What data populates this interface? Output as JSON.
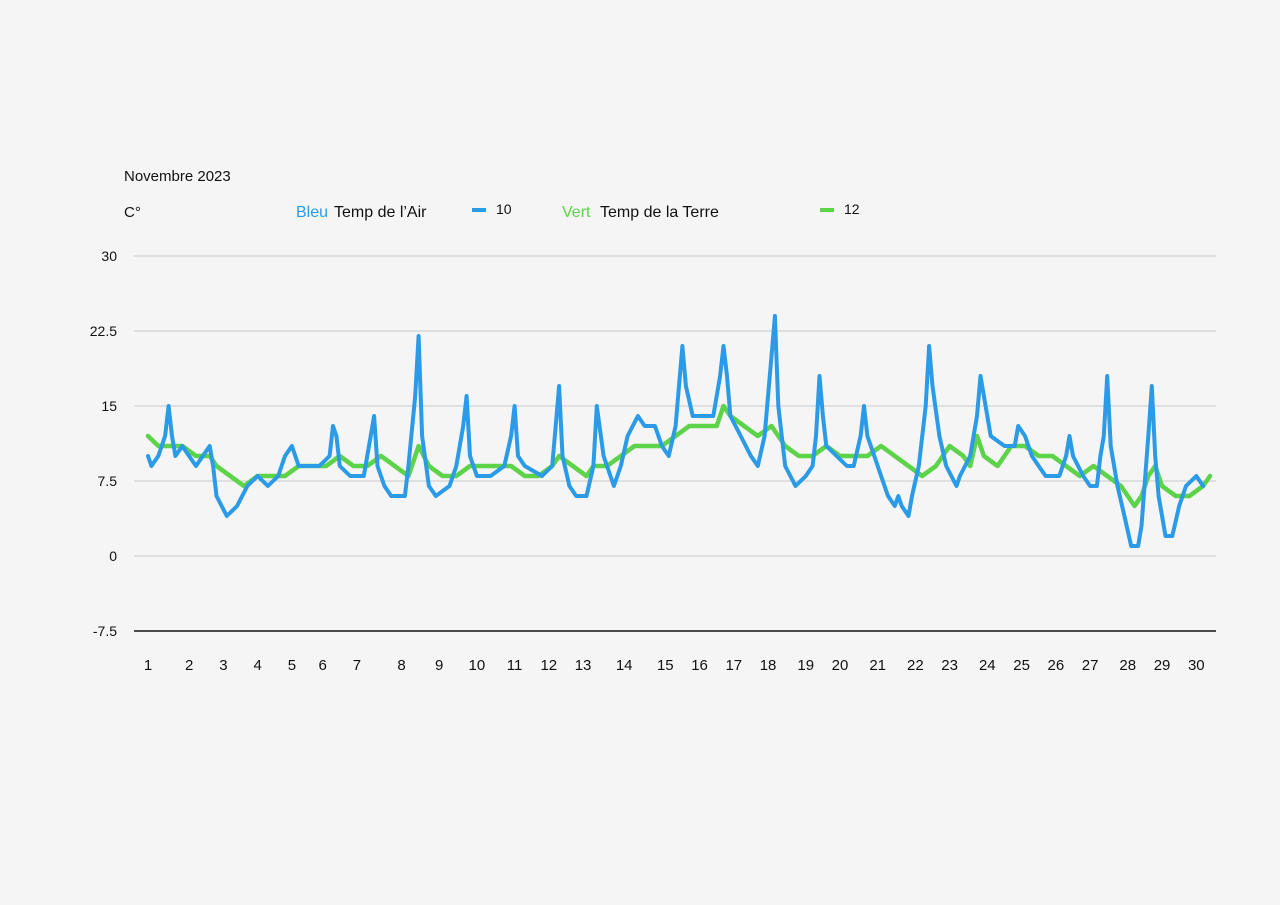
{
  "chart_data": {
    "type": "line",
    "title": "Novembre  2023",
    "ylabel": "C°",
    "ylim": [
      -7.5,
      30
    ],
    "yticks": [
      "30",
      "22.5",
      "15",
      "7.5",
      "0",
      "-7.5"
    ],
    "grid": true,
    "legend": [
      {
        "color_word": "Bleu",
        "text": "Temp de l’Air",
        "marker_label": "10",
        "color": "#2b9be8"
      },
      {
        "color_word": "Vert",
        "text": "Temp de la Terre",
        "marker_label": "12",
        "color": "#5dd34a"
      }
    ],
    "x_tick_labels": [
      "1",
      "2",
      "3",
      "4",
      "5",
      "6",
      "7",
      "8",
      "9",
      "10",
      "11",
      "12",
      "13",
      "14",
      "15",
      "16",
      "17",
      "18",
      "19",
      "20",
      "21",
      "22",
      "23",
      "24",
      "25",
      "26",
      "27",
      "28",
      "29",
      "30"
    ],
    "xlim": [
      1,
      31
    ],
    "series": [
      {
        "name": "Temp de l’Air",
        "color": "#2b9be8",
        "points": [
          [
            1.0,
            10
          ],
          [
            1.1,
            9
          ],
          [
            1.3,
            10
          ],
          [
            1.5,
            12
          ],
          [
            1.6,
            15
          ],
          [
            1.7,
            12
          ],
          [
            1.8,
            10
          ],
          [
            2.0,
            11
          ],
          [
            2.2,
            10
          ],
          [
            2.4,
            9
          ],
          [
            2.6,
            10
          ],
          [
            2.8,
            11
          ],
          [
            2.9,
            9
          ],
          [
            3.0,
            6
          ],
          [
            3.3,
            4
          ],
          [
            3.6,
            5
          ],
          [
            3.9,
            7
          ],
          [
            4.2,
            8
          ],
          [
            4.5,
            7
          ],
          [
            4.8,
            8
          ],
          [
            5.0,
            10
          ],
          [
            5.2,
            11
          ],
          [
            5.4,
            9
          ],
          [
            5.7,
            9
          ],
          [
            6.0,
            9
          ],
          [
            6.3,
            10
          ],
          [
            6.4,
            13
          ],
          [
            6.5,
            12
          ],
          [
            6.6,
            9
          ],
          [
            6.9,
            8
          ],
          [
            7.3,
            8
          ],
          [
            7.5,
            12
          ],
          [
            7.6,
            14
          ],
          [
            7.7,
            9
          ],
          [
            7.9,
            7
          ],
          [
            8.1,
            6
          ],
          [
            8.5,
            6
          ],
          [
            8.6,
            9
          ],
          [
            8.8,
            16
          ],
          [
            8.9,
            22
          ],
          [
            9.0,
            12
          ],
          [
            9.2,
            7
          ],
          [
            9.4,
            6
          ],
          [
            9.8,
            7
          ],
          [
            10.0,
            9
          ],
          [
            10.2,
            13
          ],
          [
            10.3,
            16
          ],
          [
            10.4,
            10
          ],
          [
            10.6,
            8
          ],
          [
            11.0,
            8
          ],
          [
            11.4,
            9
          ],
          [
            11.6,
            12
          ],
          [
            11.7,
            15
          ],
          [
            11.8,
            10
          ],
          [
            12.0,
            9
          ],
          [
            12.5,
            8
          ],
          [
            12.8,
            9
          ],
          [
            12.9,
            13
          ],
          [
            13.0,
            17
          ],
          [
            13.1,
            10
          ],
          [
            13.3,
            7
          ],
          [
            13.5,
            6
          ],
          [
            13.8,
            6
          ],
          [
            14.0,
            9
          ],
          [
            14.1,
            15
          ],
          [
            14.3,
            10
          ],
          [
            14.6,
            7
          ],
          [
            14.8,
            9
          ],
          [
            15.0,
            12
          ],
          [
            15.3,
            14
          ],
          [
            15.5,
            13
          ],
          [
            15.8,
            13
          ],
          [
            16.0,
            11
          ],
          [
            16.2,
            10
          ],
          [
            16.4,
            13
          ],
          [
            16.6,
            21
          ],
          [
            16.7,
            17
          ],
          [
            16.9,
            14
          ],
          [
            17.5,
            14
          ],
          [
            17.7,
            18
          ],
          [
            17.8,
            21
          ],
          [
            17.9,
            18
          ],
          [
            18.0,
            14
          ],
          [
            18.3,
            12
          ],
          [
            18.6,
            10
          ],
          [
            18.8,
            9
          ],
          [
            19.0,
            12
          ],
          [
            19.2,
            20
          ],
          [
            19.3,
            24
          ],
          [
            19.4,
            15
          ],
          [
            19.6,
            9
          ],
          [
            19.9,
            7
          ],
          [
            20.2,
            8
          ],
          [
            20.4,
            9
          ],
          [
            20.5,
            12
          ],
          [
            20.6,
            18
          ],
          [
            20.7,
            14
          ],
          [
            20.8,
            11
          ],
          [
            21.1,
            10
          ],
          [
            21.4,
            9
          ],
          [
            21.6,
            9
          ],
          [
            21.8,
            12
          ],
          [
            21.9,
            15
          ],
          [
            22.0,
            12
          ],
          [
            22.2,
            10
          ],
          [
            22.4,
            8
          ],
          [
            22.6,
            6
          ],
          [
            22.8,
            5
          ],
          [
            22.9,
            6
          ],
          [
            23.0,
            5
          ],
          [
            23.2,
            4
          ],
          [
            23.3,
            6
          ],
          [
            23.5,
            9
          ],
          [
            23.7,
            15
          ],
          [
            23.8,
            21
          ],
          [
            23.9,
            17
          ],
          [
            24.1,
            12
          ],
          [
            24.3,
            9
          ],
          [
            24.6,
            7
          ],
          [
            24.7,
            8
          ],
          [
            25.0,
            10
          ],
          [
            25.2,
            14
          ],
          [
            25.3,
            18
          ],
          [
            25.4,
            16
          ],
          [
            25.6,
            12
          ],
          [
            26.0,
            11
          ],
          [
            26.3,
            11
          ],
          [
            26.4,
            13
          ],
          [
            26.6,
            12
          ],
          [
            26.8,
            10
          ],
          [
            27.0,
            9
          ],
          [
            27.2,
            8
          ],
          [
            27.6,
            8
          ],
          [
            27.8,
            10
          ],
          [
            27.9,
            12
          ],
          [
            28.0,
            10
          ],
          [
            28.3,
            8
          ],
          [
            28.5,
            7
          ],
          [
            28.7,
            7
          ],
          [
            28.8,
            10
          ],
          [
            28.9,
            12
          ],
          [
            29.0,
            18
          ],
          [
            29.1,
            11
          ],
          [
            29.3,
            7
          ],
          [
            29.5,
            4
          ],
          [
            29.7,
            1
          ],
          [
            29.9,
            1
          ],
          [
            30.0,
            3
          ],
          [
            30.2,
            12
          ],
          [
            30.3,
            17
          ],
          [
            30.4,
            10
          ],
          [
            30.5,
            6
          ],
          [
            30.7,
            2
          ],
          [
            30.9,
            2
          ],
          [
            31.1,
            5
          ],
          [
            31.3,
            7
          ],
          [
            31.6,
            8
          ],
          [
            31.8,
            7
          ]
        ]
      },
      {
        "name": "Temp de la Terre",
        "color": "#5dd34a",
        "points": [
          [
            1.0,
            12
          ],
          [
            1.3,
            11
          ],
          [
            1.6,
            11
          ],
          [
            2.0,
            11
          ],
          [
            2.4,
            10
          ],
          [
            2.8,
            10
          ],
          [
            3.0,
            9
          ],
          [
            3.4,
            8
          ],
          [
            3.8,
            7
          ],
          [
            4.2,
            8
          ],
          [
            4.6,
            8
          ],
          [
            5.0,
            8
          ],
          [
            5.4,
            9
          ],
          [
            5.8,
            9
          ],
          [
            6.2,
            9
          ],
          [
            6.6,
            10
          ],
          [
            7.0,
            9
          ],
          [
            7.4,
            9
          ],
          [
            7.8,
            10
          ],
          [
            8.2,
            9
          ],
          [
            8.6,
            8
          ],
          [
            8.9,
            11
          ],
          [
            9.2,
            9
          ],
          [
            9.6,
            8
          ],
          [
            10.0,
            8
          ],
          [
            10.4,
            9
          ],
          [
            10.8,
            9
          ],
          [
            11.2,
            9
          ],
          [
            11.6,
            9
          ],
          [
            12.0,
            8
          ],
          [
            12.4,
            8
          ],
          [
            12.8,
            9
          ],
          [
            13.0,
            10
          ],
          [
            13.4,
            9
          ],
          [
            13.8,
            8
          ],
          [
            14.0,
            9
          ],
          [
            14.4,
            9
          ],
          [
            14.8,
            10
          ],
          [
            15.2,
            11
          ],
          [
            15.6,
            11
          ],
          [
            16.0,
            11
          ],
          [
            16.4,
            12
          ],
          [
            16.8,
            13
          ],
          [
            17.2,
            13
          ],
          [
            17.6,
            13
          ],
          [
            17.8,
            15
          ],
          [
            18.0,
            14
          ],
          [
            18.4,
            13
          ],
          [
            18.8,
            12
          ],
          [
            19.2,
            13
          ],
          [
            19.4,
            12
          ],
          [
            19.6,
            11
          ],
          [
            20.0,
            10
          ],
          [
            20.4,
            10
          ],
          [
            20.8,
            11
          ],
          [
            21.2,
            10
          ],
          [
            21.6,
            10
          ],
          [
            22.0,
            10
          ],
          [
            22.4,
            11
          ],
          [
            22.8,
            10
          ],
          [
            23.2,
            9
          ],
          [
            23.6,
            8
          ],
          [
            24.0,
            9
          ],
          [
            24.4,
            11
          ],
          [
            24.8,
            10
          ],
          [
            25.0,
            9
          ],
          [
            25.2,
            12
          ],
          [
            25.4,
            10
          ],
          [
            25.8,
            9
          ],
          [
            26.2,
            11
          ],
          [
            26.6,
            11
          ],
          [
            27.0,
            10
          ],
          [
            27.4,
            10
          ],
          [
            27.8,
            9
          ],
          [
            28.2,
            8
          ],
          [
            28.6,
            9
          ],
          [
            29.0,
            8
          ],
          [
            29.4,
            7
          ],
          [
            29.6,
            6
          ],
          [
            29.8,
            5
          ],
          [
            30.0,
            6
          ],
          [
            30.2,
            8
          ],
          [
            30.4,
            9
          ],
          [
            30.6,
            7
          ],
          [
            31.0,
            6
          ],
          [
            31.4,
            6
          ],
          [
            31.8,
            7
          ],
          [
            32.0,
            8
          ]
        ]
      }
    ]
  }
}
